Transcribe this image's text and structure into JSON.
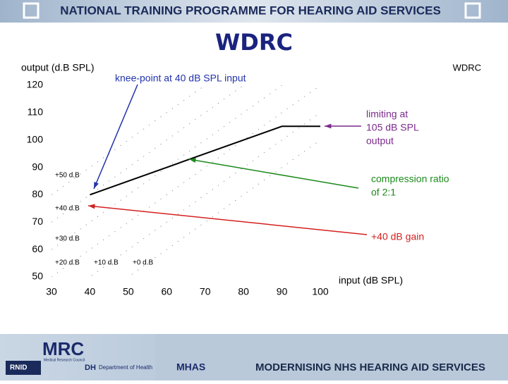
{
  "header": {
    "title": "NATIONAL TRAINING PROGRAMME FOR  HEARING AID SERVICES"
  },
  "slide_title": "WDRC",
  "chart_data": {
    "type": "line",
    "title": "WDRC",
    "y_label": "output (d.B SPL)",
    "x_label": "input (dB SPL)",
    "x": [
      40,
      90,
      100
    ],
    "values": [
      80,
      105,
      105
    ],
    "color": "#000000",
    "xlim": [
      30,
      100
    ],
    "xticks": [
      30,
      40,
      50,
      60,
      70,
      80,
      90,
      100
    ],
    "ylim": [
      50,
      120
    ],
    "yticks": [
      50,
      60,
      70,
      80,
      90,
      100,
      110,
      120
    ],
    "gain_lines": [
      {
        "value": 50,
        "label": "+50 d.B"
      },
      {
        "value": 40,
        "label": "+40 d.B"
      },
      {
        "value": 30,
        "label": "+30 d.B"
      },
      {
        "value": 20,
        "label": "+20 d.B"
      },
      {
        "value": 10,
        "label": "+10 d.B"
      },
      {
        "value": 0,
        "label": "+0 d.B"
      }
    ],
    "annotations": [
      {
        "lines": [
          "knee-point at 40 dB SPL input"
        ],
        "color": "#2233aa"
      },
      {
        "lines": [
          "limiting at",
          "105 dB SPL",
          "output"
        ],
        "color": "#7b2a8c"
      },
      {
        "lines": [
          "compression ratio",
          "of 2:1"
        ],
        "color": "#1c8a1c"
      },
      {
        "lines": [
          "+40 dB gain"
        ],
        "color": "#d42020"
      }
    ]
  },
  "footer": {
    "logos": [
      "RNID",
      "MRC",
      "Medical Research Council",
      "DH",
      "Department of Health",
      "MHAS"
    ],
    "title": "MODERNISING NHS HEARING AID SERVICES"
  }
}
